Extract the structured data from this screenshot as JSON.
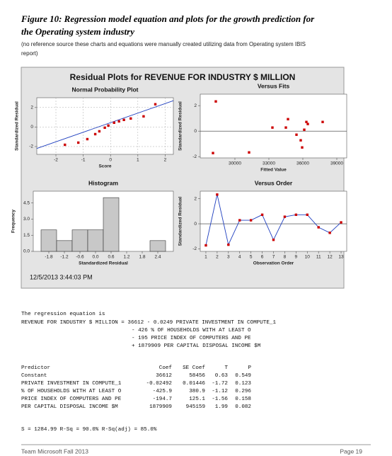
{
  "caption": {
    "title": "Figure 10:  Regression model equation and plots for the growth prediction for the Operating system industry",
    "note": "(no reference source these charts and equations were manually created utilizing data from Operating system IBIS report)"
  },
  "figure": {
    "title": "Residual Plots for REVENUE FOR INDUSTRY $ MILLION",
    "timestamp": "12/5/2013 3:44:03 PM",
    "charts": [
      {
        "type": "scatter",
        "title": "Normal Probability Plot",
        "xlabel": "Score",
        "ylabel": "Standardized Residual",
        "x": [
          -1.67,
          -1.18,
          -0.85,
          -0.56,
          -0.41,
          -0.21,
          -0.08,
          0.13,
          0.31,
          0.49,
          0.74,
          1.21,
          1.64
        ],
        "y": [
          -1.82,
          -1.6,
          -1.24,
          -0.73,
          -0.44,
          -0.07,
          0.15,
          0.44,
          0.58,
          0.73,
          0.87,
          1.09,
          2.33
        ],
        "fit_line": {
          "x": [
            -2.7,
            2.3
          ],
          "y": [
            -2.2,
            2.7
          ]
        },
        "xlim": [
          -2.7,
          2.3
        ],
        "ylim": [
          -2.8,
          3.0
        ],
        "xticks": [
          -2,
          -1,
          0,
          1,
          2
        ],
        "yticks": [
          -2,
          0,
          2
        ],
        "grid": true,
        "color": "#cc0000",
        "line_color": "#1f3fbf"
      },
      {
        "type": "scatter",
        "title": "Versus Fits",
        "xlabel": "Fitted Value",
        "ylabel": "Standardized Residual",
        "x": [
          28063,
          28313,
          31250,
          33313,
          34500,
          34688,
          35438,
          35813,
          35938,
          36125,
          36313,
          36438,
          37750
        ],
        "y": [
          -1.72,
          2.33,
          -1.67,
          0.28,
          0.28,
          0.94,
          -0.28,
          -0.72,
          -1.28,
          0.11,
          0.72,
          0.56,
          0.72
        ],
        "ref_line": 0,
        "xlim": [
          26938,
          39875
        ],
        "ylim": [
          -2.1,
          2.9
        ],
        "xticks": [
          30000,
          33000,
          36000,
          39000
        ],
        "yticks": [
          -2,
          0,
          2
        ],
        "grid": false,
        "color": "#cc0000",
        "line_color": "#1f3fbf"
      },
      {
        "type": "histogram",
        "title": "Histogram",
        "xlabel": "Standardized Residual",
        "ylabel": "Frequency",
        "bins": [
          -2.1,
          -1.5,
          -0.9,
          -0.3,
          0.3,
          0.9,
          1.5,
          2.1,
          2.7
        ],
        "counts": [
          2,
          1,
          2,
          2,
          5,
          0,
          0,
          1
        ],
        "xlim": [
          -2.4,
          3.0
        ],
        "ylim": [
          0,
          5.6
        ],
        "xticks": [
          -1.8,
          -1.2,
          -0.6,
          {
            "value": 0,
            "label": "0.0"
          },
          0.6,
          1.2,
          1.8,
          2.4
        ],
        "yticks": [
          {
            "value": 0,
            "label": "0.0"
          },
          1.5,
          {
            "value": 3,
            "label": "3.0"
          },
          4.5
        ],
        "grid": false,
        "color": "#c8c8c8"
      },
      {
        "type": "line",
        "title": "Versus Order",
        "xlabel": "Observation Order",
        "ylabel": "Standardized Residual",
        "x": [
          1,
          2,
          3,
          4,
          5,
          6,
          7,
          8,
          9,
          10,
          11,
          12,
          13
        ],
        "y": [
          -1.72,
          2.33,
          -1.67,
          0.28,
          0.28,
          0.72,
          -1.28,
          0.56,
          0.72,
          0.72,
          -0.28,
          -0.72,
          0.11
        ],
        "ref_line": 0,
        "xlim": [
          0.5,
          13.5
        ],
        "ylim": [
          -2.2,
          2.6
        ],
        "xticks": [
          1,
          2,
          3,
          4,
          5,
          6,
          7,
          8,
          9,
          10,
          11,
          12,
          13
        ],
        "yticks": [
          -2,
          0,
          2
        ],
        "grid": false,
        "color": "#cc0000",
        "line_color": "#1f3fbf"
      }
    ]
  },
  "regression": {
    "intro": "The regression equation is",
    "equation": [
      "REVENUE FOR INDUSTRY $ MILLION = 36612 - 0.0249 PRIVATE INVESTMENT IN COMPUTE_1",
      "- 426 % OF HOUSEHOLDS WITH AT LEAST O",
      "- 195 PRICE INDEX OF COMPUTERS AND PE",
      "+ 1879909 PER CAPITAL DISPOSAL INCOME $M"
    ],
    "header": [
      "Predictor",
      "Coef",
      "SE Coef",
      "T",
      "P"
    ],
    "rows": [
      [
        "Constant",
        "36612",
        "58456",
        "0.63",
        "0.549"
      ],
      [
        "PRIVATE INVESTMENT IN COMPUTE_1",
        "-0.02492",
        "0.01446",
        "-1.72",
        "0.123"
      ],
      [
        "% OF HOUSEHOLDS WITH AT LEAST O",
        "-425.9",
        "380.9",
        "-1.12",
        "0.296"
      ],
      [
        "PRICE INDEX OF COMPUTERS AND PE",
        "-194.7",
        "125.1",
        "-1.56",
        "0.158"
      ],
      [
        "PER CAPITAL DISPOSAL INCOME $M",
        "1879909",
        "945159",
        "1.99",
        "0.082"
      ]
    ],
    "summary": "S = 1284.99   R-Sq = 90.0%   R-Sq(adj) = 85.0%"
  },
  "footer": {
    "left": "Team Microsoft Fall 2013",
    "right": "Page 19"
  }
}
